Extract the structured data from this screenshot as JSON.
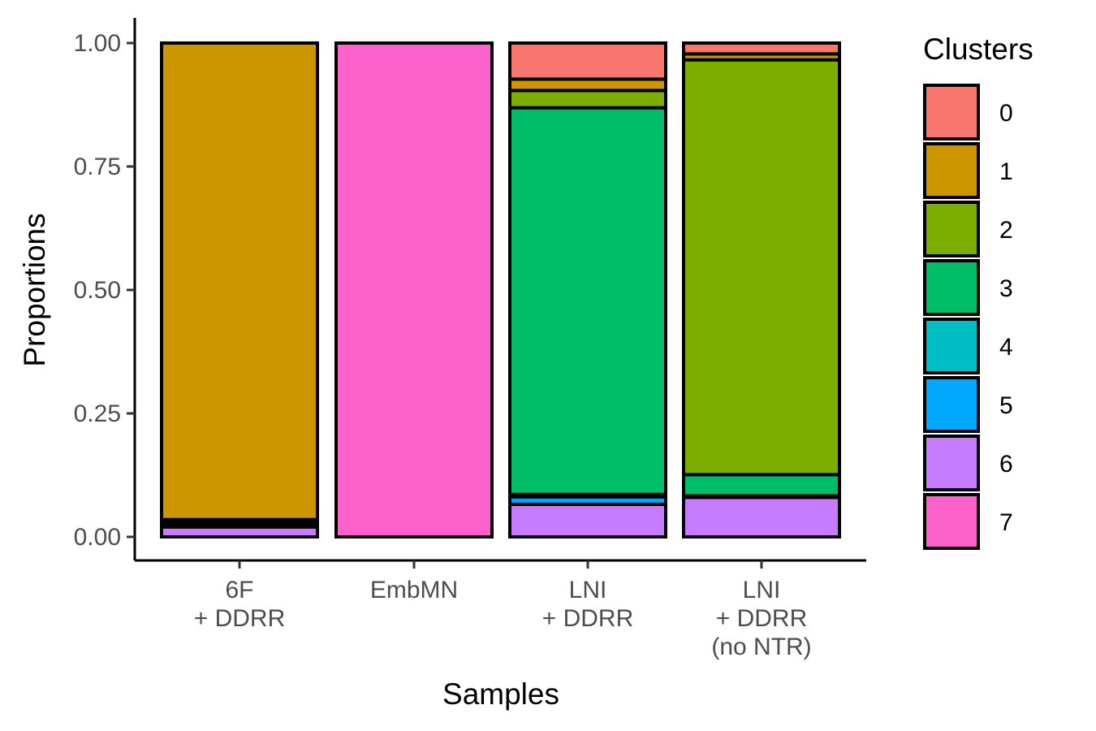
{
  "chart_data": {
    "type": "bar",
    "stacked": true,
    "categories": [
      "6F\n+ DDRR",
      "EmbMN",
      "LNI\n+ DDRR",
      "LNI\n+ DDRR\n(no NTR)"
    ],
    "series": [
      {
        "name": "0",
        "color": "#F8766D",
        "values": [
          0.0,
          0.0,
          0.073,
          0.022
        ]
      },
      {
        "name": "1",
        "color": "#CD9600",
        "values": [
          0.965,
          0.0,
          0.023,
          0.012
        ]
      },
      {
        "name": "2",
        "color": "#7CAE00",
        "values": [
          0.004,
          0.0,
          0.035,
          0.84
        ]
      },
      {
        "name": "3",
        "color": "#00BE67",
        "values": [
          0.004,
          0.0,
          0.783,
          0.043
        ]
      },
      {
        "name": "4",
        "color": "#00BFC4",
        "values": [
          0.004,
          0.0,
          0.005,
          0.001
        ]
      },
      {
        "name": "5",
        "color": "#00A9FF",
        "values": [
          0.003,
          0.0,
          0.015,
          0.002
        ]
      },
      {
        "name": "6",
        "color": "#C77CFF",
        "values": [
          0.02,
          0.0,
          0.066,
          0.08
        ]
      },
      {
        "name": "7",
        "color": "#FF61CC",
        "values": [
          0.0,
          1.0,
          0.0,
          0.0
        ]
      }
    ],
    "stack_order_bottom_to_top": [
      "7",
      "6",
      "5",
      "4",
      "3",
      "2",
      "1",
      "0"
    ],
    "xlabel": "Samples",
    "ylabel": "Proportions",
    "ylim": [
      0,
      1
    ],
    "yticks": [
      "0.00",
      "0.25",
      "0.50",
      "0.75",
      "1.00"
    ],
    "ytick_values": [
      0,
      0.25,
      0.5,
      0.75,
      1.0
    ],
    "legend": {
      "title": "Clusters",
      "placement": "right"
    },
    "grid": false
  }
}
